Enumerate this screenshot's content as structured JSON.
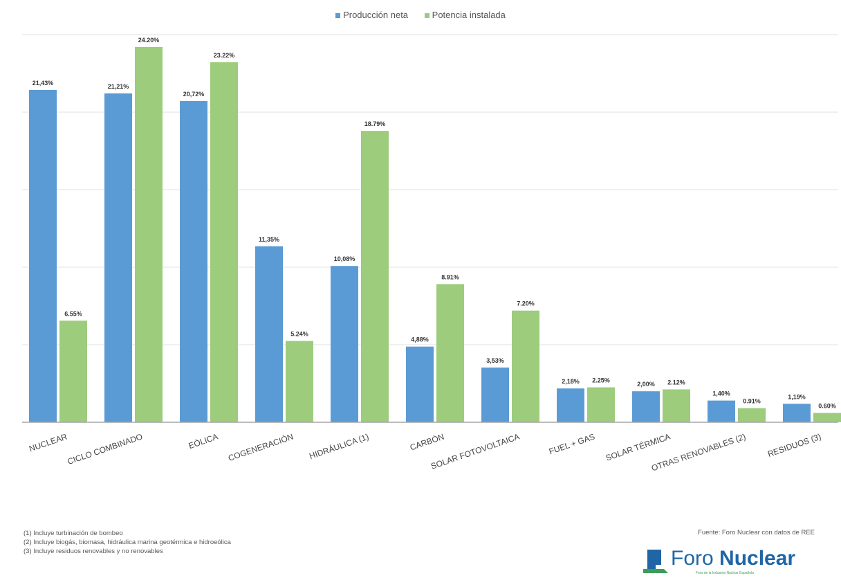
{
  "colors": {
    "produccion": "#5b9bd5",
    "potencia": "#9ccc7c",
    "grid": "#e2e2e2",
    "axis": "#a6a6a6"
  },
  "chart_data": {
    "type": "bar",
    "title": "",
    "xlabel": "",
    "ylabel": "",
    "ylim": [
      0,
      25
    ],
    "grid": true,
    "legend_position": "top-center",
    "categories": [
      "NUCLEAR",
      "CICLO COMBINADO",
      "EÓLICA",
      "COGENERACIÓN",
      "HIDRÁULICA (1)",
      "CARBÓN",
      "SOLAR FOTOVOLTAICA",
      "FUEL + GAS",
      "SOLAR TÉRMICA",
      "OTRAS RENOVABLES (2)",
      "RESIDUOS (3)"
    ],
    "series": [
      {
        "name": "Producción neta",
        "values": [
          21.43,
          21.21,
          20.72,
          11.35,
          10.08,
          4.88,
          3.53,
          2.18,
          2.0,
          1.4,
          1.19
        ],
        "labels": [
          "21,43%",
          "21,21%",
          "20,72%",
          "11,35%",
          "10,08%",
          "4,88%",
          "3,53%",
          "2,18%",
          "2,00%",
          "1,40%",
          "1,19%"
        ]
      },
      {
        "name": "Potencia instalada",
        "values": [
          6.55,
          24.2,
          23.22,
          5.24,
          18.79,
          8.91,
          7.2,
          2.25,
          2.12,
          0.91,
          0.6
        ],
        "labels": [
          "6.55%",
          "24.20%",
          "23.22%",
          "5.24%",
          "18.79%",
          "8.91%",
          "7.20%",
          "2.25%",
          "2.12%",
          "0.91%",
          "0.60%"
        ]
      }
    ]
  },
  "footnotes": [
    "(1) Incluye turbinación de bombeo",
    "(2) Incluye biogás, biomasa, hidráulica marina geotérmica e hidroeólica",
    "(3) Incluye residuos renovables y no renovables"
  ],
  "source": "Fuente: Foro Nuclear con datos de REE",
  "logo": {
    "name_light": "Foro",
    "name_bold": "Nuclear",
    "tagline": "Foro de la Industria Nuclear Española"
  }
}
